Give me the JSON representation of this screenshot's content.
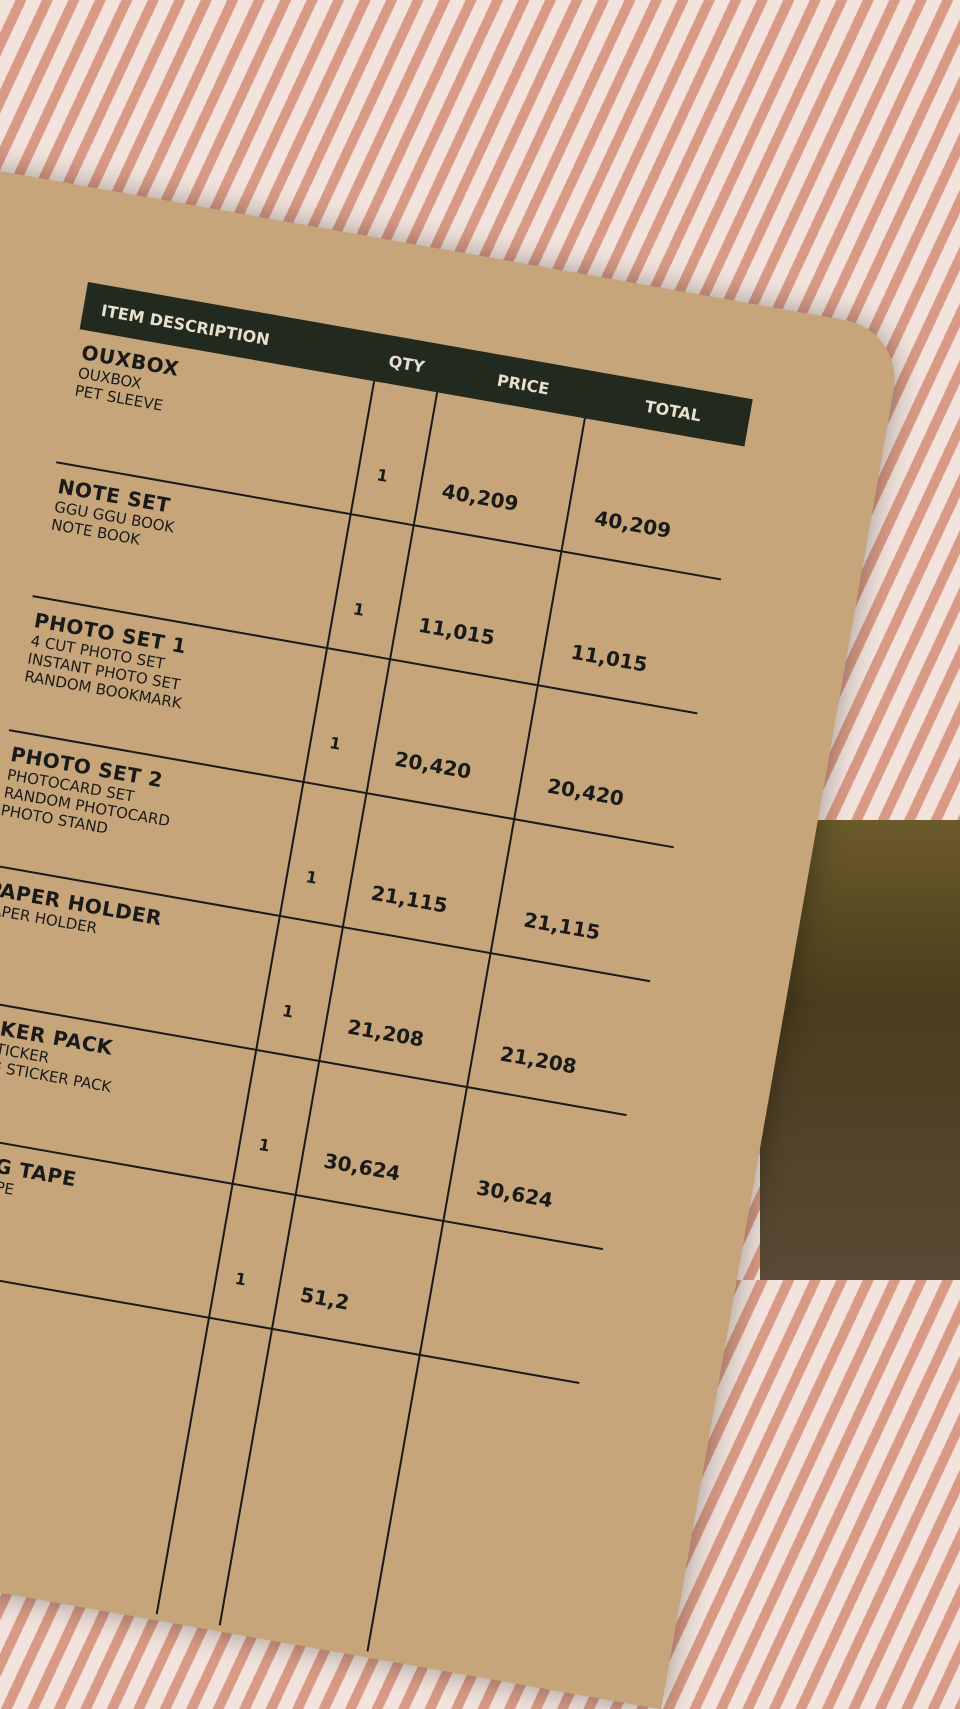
{
  "header": {
    "description": "ITEM DESCRIPTION",
    "qty": "QTY",
    "price": "PRICE",
    "total": "TOTAL"
  },
  "rows": [
    {
      "name": "OUXBOX",
      "lines": [
        "OUXBOX",
        "PET SLEEVE"
      ],
      "qty": "1",
      "price": "40,209",
      "total": "40,209"
    },
    {
      "name": "NOTE SET",
      "lines": [
        "GGU GGU BOOK",
        "NOTE BOOK"
      ],
      "qty": "1",
      "price": "11,015",
      "total": "11,015"
    },
    {
      "name": "PHOTO SET 1",
      "lines": [
        "4 CUT PHOTO SET",
        "INSTANT PHOTO SET",
        "RANDOM BOOKMARK"
      ],
      "qty": "1",
      "price": "20,420",
      "total": "20,420"
    },
    {
      "name": "PHOTO SET 2",
      "lines": [
        "PHOTOCARD SET",
        "RANDOM PHOTOCARD",
        "PHOTO STAND"
      ],
      "qty": "1",
      "price": "21,115",
      "total": "21,115"
    },
    {
      "name": "PAPER HOLDER",
      "lines": [
        "PAPER HOLDER"
      ],
      "qty": "1",
      "price": "21,208",
      "total": "21,208"
    },
    {
      "name": "TICKER PACK",
      "lines": [
        "CO STICKER",
        "TTING STICKER PACK"
      ],
      "qty": "1",
      "price": "30,624",
      "total": "30,624"
    },
    {
      "name": "SKING TAPE",
      "lines": [
        "KING TAPE"
      ],
      "qty": "1",
      "price": "51,2",
      "total": ""
    }
  ]
}
